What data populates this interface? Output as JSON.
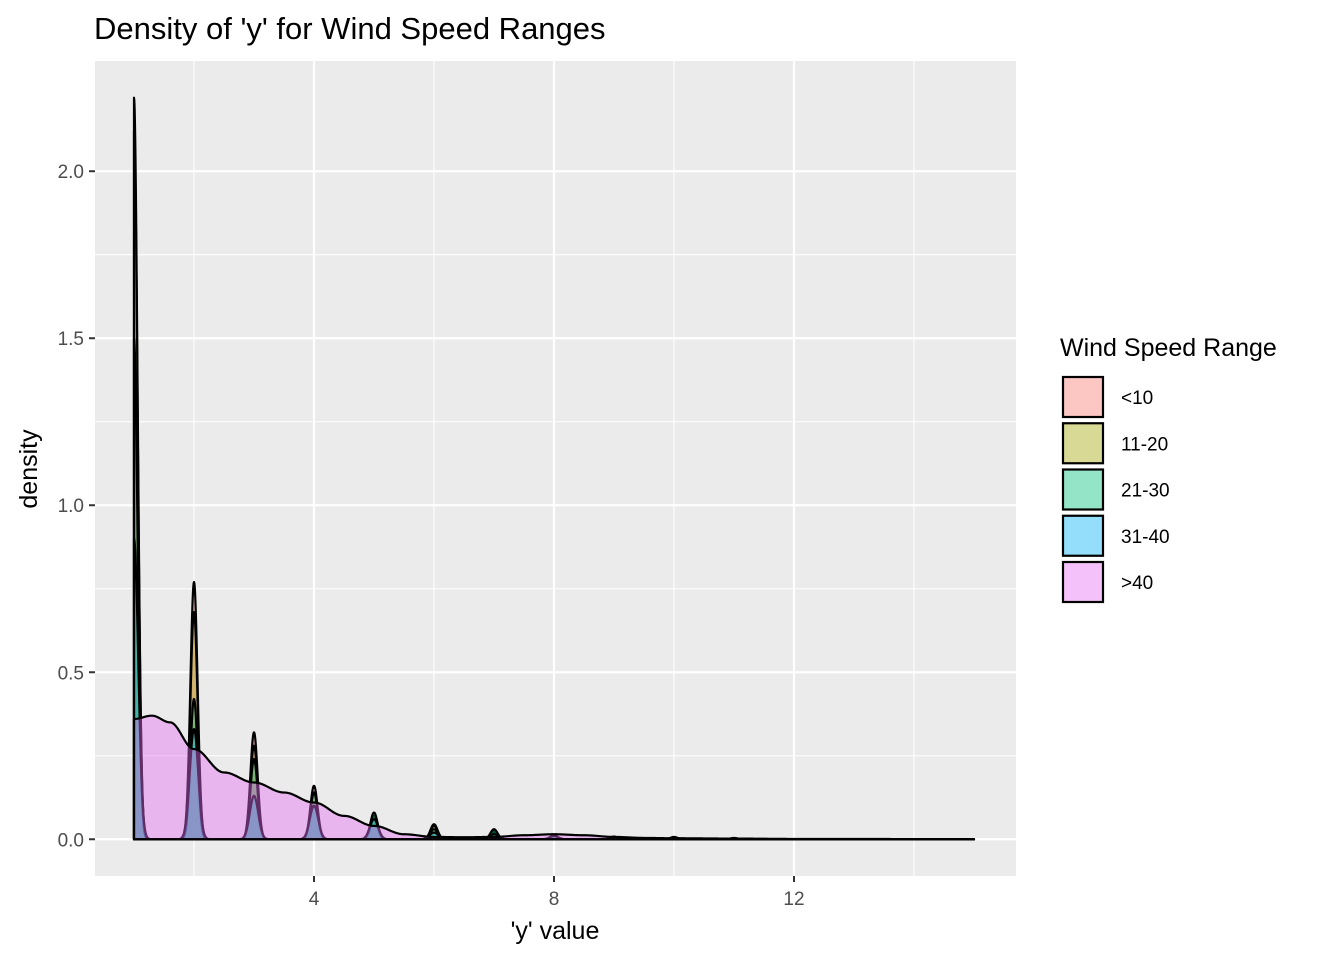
{
  "chart_data": {
    "type": "area",
    "subtype": "density",
    "title": "Density of 'y' for Wind Speed Ranges",
    "xlabel": "'y' value",
    "ylabel": "density",
    "xlim": [
      0.35,
      15.7
    ],
    "ylim": [
      -0.11,
      2.33
    ],
    "x_ticks": [
      4,
      8,
      12
    ],
    "x_minor_ticks": [
      2,
      6,
      10,
      14
    ],
    "y_ticks": [
      0.0,
      0.5,
      1.0,
      1.5,
      2.0
    ],
    "y_tick_labels": [
      "0.0",
      "0.5",
      "1.0",
      "1.5",
      "2.0"
    ],
    "grid": true,
    "legend": {
      "title": "Wind Speed Range",
      "position": "right"
    },
    "series": [
      {
        "name": "<10",
        "color": "#F8766D",
        "bandwidth": 0.06,
        "peaks": [
          [
            1,
            2.12
          ],
          [
            2,
            0.77
          ],
          [
            3,
            0.32
          ],
          [
            4,
            0.16
          ],
          [
            5,
            0.07
          ],
          [
            6,
            0.045
          ],
          [
            7,
            0.025
          ],
          [
            8,
            0.012
          ],
          [
            9,
            0.008
          ],
          [
            10,
            0.007
          ],
          [
            11,
            0.004
          ]
        ]
      },
      {
        "name": "11-20",
        "color": "#A3A500",
        "bandwidth": 0.06,
        "peaks": [
          [
            1,
            2.22
          ],
          [
            2,
            0.68
          ],
          [
            3,
            0.28
          ],
          [
            4,
            0.14
          ],
          [
            5,
            0.06
          ],
          [
            6,
            0.04
          ],
          [
            7,
            0.02
          ],
          [
            8,
            0.01
          ],
          [
            9,
            0.006
          ],
          [
            10,
            0.005
          ]
        ]
      },
      {
        "name": "21-30",
        "color": "#00BF7D",
        "bandwidth": 0.06,
        "peaks": [
          [
            1,
            1.5
          ],
          [
            2,
            0.42
          ],
          [
            3,
            0.24
          ],
          [
            4,
            0.14
          ],
          [
            5,
            0.08
          ],
          [
            6,
            0.03
          ],
          [
            7,
            0.03
          ],
          [
            8,
            0.01
          ]
        ]
      },
      {
        "name": "31-40",
        "color": "#00B0F6",
        "bandwidth": 0.07,
        "peaks": [
          [
            1,
            0.9
          ],
          [
            2,
            0.33
          ],
          [
            3,
            0.13
          ],
          [
            4,
            0.1
          ],
          [
            5,
            0.06
          ],
          [
            6,
            0.02
          ],
          [
            7,
            0.015
          ],
          [
            8,
            0.01
          ]
        ]
      },
      {
        "name": ">40",
        "color": "#E76BF3",
        "smooth": {
          "x": [
            1.0,
            1.3,
            1.6,
            2.0,
            2.5,
            3.0,
            3.5,
            4.0,
            4.5,
            5.0,
            5.5,
            6.0,
            6.5,
            7.0,
            7.5,
            8.0,
            8.5,
            9.0,
            9.5,
            10.0,
            11.0,
            12.0,
            13.0,
            14.0,
            15.0
          ],
          "y": [
            0.36,
            0.37,
            0.35,
            0.27,
            0.2,
            0.17,
            0.14,
            0.11,
            0.07,
            0.04,
            0.015,
            0.007,
            0.006,
            0.007,
            0.012,
            0.015,
            0.012,
            0.007,
            0.004,
            0.003,
            0.002,
            0.001,
            0.001,
            0.0005,
            0.0
          ]
        }
      }
    ]
  }
}
